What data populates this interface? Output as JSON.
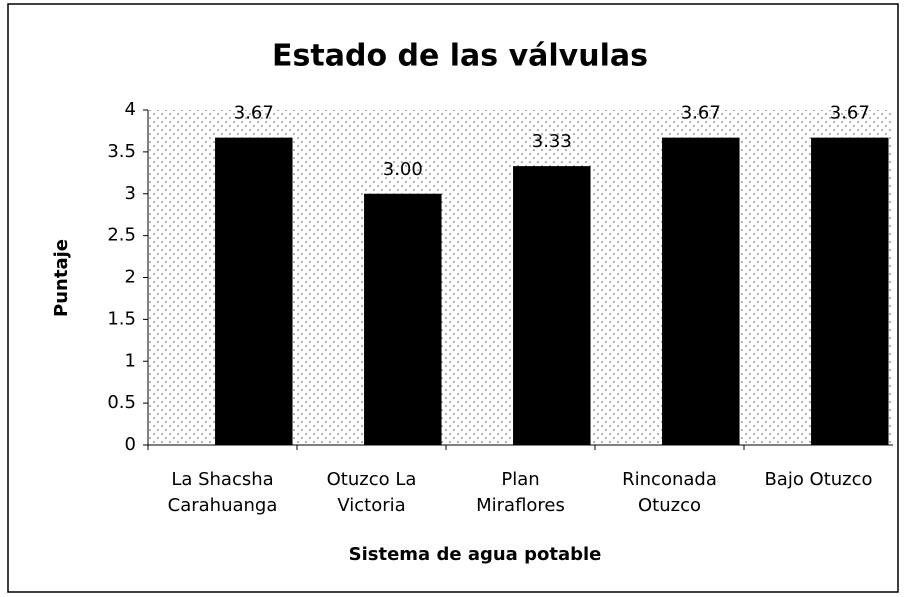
{
  "chart_data": {
    "type": "bar",
    "title": "Estado de las válvulas",
    "x_label": "Sistema de agua potable",
    "y_label": "Puntaje",
    "categories": [
      "La Shacsha Carahuanga",
      "Otuzco La Victoria",
      "Plan Miraflores",
      "Rinconada Otuzco",
      "Bajo Otuzco"
    ],
    "values": [
      3.67,
      3.0,
      3.33,
      3.67,
      3.67
    ],
    "value_labels": [
      "3.67",
      "3.00",
      "3.33",
      "3.67",
      "3.67"
    ],
    "color": "#000000",
    "ylim": [
      0,
      4
    ],
    "yticks": [
      0,
      0.5,
      1,
      1.5,
      2,
      2.5,
      3,
      3.5,
      4
    ],
    "grid": false
  }
}
